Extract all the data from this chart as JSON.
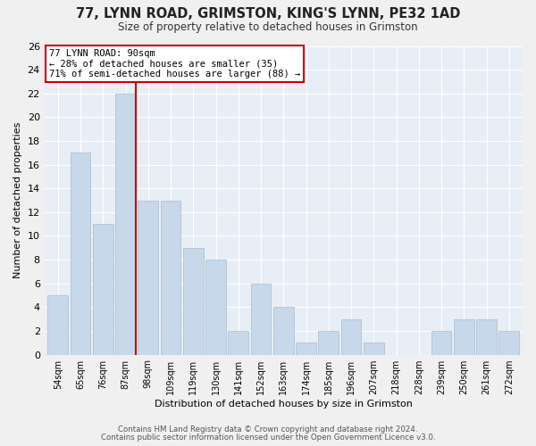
{
  "title": "77, LYNN ROAD, GRIMSTON, KING'S LYNN, PE32 1AD",
  "subtitle": "Size of property relative to detached houses in Grimston",
  "xlabel": "Distribution of detached houses by size in Grimston",
  "ylabel": "Number of detached properties",
  "bar_labels": [
    "54sqm",
    "65sqm",
    "76sqm",
    "87sqm",
    "98sqm",
    "109sqm",
    "119sqm",
    "130sqm",
    "141sqm",
    "152sqm",
    "163sqm",
    "174sqm",
    "185sqm",
    "196sqm",
    "207sqm",
    "218sqm",
    "228sqm",
    "239sqm",
    "250sqm",
    "261sqm",
    "272sqm"
  ],
  "bar_values": [
    5,
    17,
    11,
    22,
    13,
    13,
    9,
    8,
    2,
    6,
    4,
    1,
    2,
    3,
    1,
    0,
    0,
    2,
    3,
    3,
    2
  ],
  "bar_color": "#c8d8eb",
  "highlight_bar_index": 3,
  "highlight_color": "#cc0000",
  "ylim": [
    0,
    26
  ],
  "yticks": [
    0,
    2,
    4,
    6,
    8,
    10,
    12,
    14,
    16,
    18,
    20,
    22,
    24,
    26
  ],
  "annotation_title": "77 LYNN ROAD: 90sqm",
  "annotation_line1": "← 28% of detached houses are smaller (35)",
  "annotation_line2": "71% of semi-detached houses are larger (88) →",
  "footnote1": "Contains HM Land Registry data © Crown copyright and database right 2024.",
  "footnote2": "Contains public sector information licensed under the Open Government Licence v3.0.",
  "bg_color": "#f0f0f0",
  "plot_bg_color": "#e8eef5",
  "grid_color": "#ffffff",
  "annotation_box_color": "#ffffff",
  "annotation_box_edge": "#cc0000"
}
